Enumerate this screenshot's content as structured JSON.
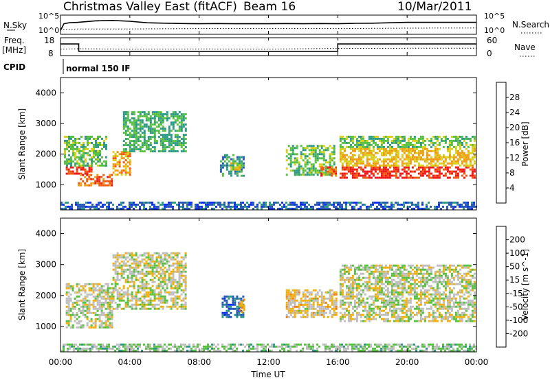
{
  "header": {
    "title": "Christmas Valley East (fitACF)",
    "beam": "Beam 16",
    "date": "10/Mar/2011"
  },
  "colors": {
    "axis": "#000000",
    "scatter_gray": "#bebebe"
  },
  "chart_data": [
    {
      "type": "line",
      "panel": "noise",
      "ylabel_left": "N.Sky",
      "ylabel_right": "N.Search",
      "ticks_left": [
        "10^5",
        "10^0"
      ],
      "ticks_right": [
        "10^5",
        "10^0"
      ],
      "series": [
        {
          "style": "solid",
          "x": [
            0,
            0.2,
            0.5,
            1,
            2,
            3,
            4,
            5,
            6,
            7,
            8,
            9,
            10,
            11,
            12,
            13,
            14,
            15,
            16,
            17,
            18,
            19,
            20,
            21,
            22,
            23,
            24
          ],
          "y": [
            0.2,
            0.55,
            0.6,
            0.62,
            0.7,
            0.72,
            0.68,
            0.6,
            0.58,
            0.56,
            0.55,
            0.56,
            0.55,
            0.55,
            0.55,
            0.56,
            0.55,
            0.56,
            0.55,
            0.57,
            0.58,
            0.6,
            0.62,
            0.62,
            0.62,
            0.62,
            0.62
          ]
        },
        {
          "style": "dotted",
          "x": [
            0,
            1,
            4,
            8,
            12,
            16,
            20,
            24
          ],
          "y": [
            0.25,
            0.28,
            0.28,
            0.3,
            0.3,
            0.3,
            0.32,
            0.33
          ]
        }
      ]
    },
    {
      "type": "line",
      "panel": "frequency",
      "ylabel_left": "Freq.",
      "ylabel_left_unit": "[MHz]",
      "ylabel_right": "Nave",
      "ticks_left": [
        "18",
        "8"
      ],
      "ticks_right": [
        "60",
        "0"
      ],
      "series": [
        {
          "style": "solid",
          "x": [
            0,
            1.05,
            1.05,
            16,
            16,
            24
          ],
          "y": [
            14.5,
            14.5,
            10.4,
            10.4,
            14.5,
            14.5
          ]
        },
        {
          "style": "dotted",
          "x": [
            0,
            1,
            4,
            8,
            12,
            16,
            20,
            24
          ],
          "y": [
            11.6,
            11.8,
            11.6,
            11.7,
            11.6,
            12.0,
            12.1,
            12.1
          ]
        }
      ]
    },
    {
      "type": "table",
      "panel": "cpid",
      "label": "CPID",
      "value": "normal 150 IF"
    },
    {
      "type": "heatmap",
      "panel": "power",
      "ylabel": "Slant Range [km]",
      "ylim": [
        180,
        4500
      ],
      "yticks": [
        1000,
        2000,
        3000,
        4000
      ],
      "colorbar": {
        "label": "Power [dB]",
        "ticks": [
          "4",
          "8",
          "12",
          "16",
          "20",
          "24",
          "28"
        ],
        "colors": [
          "#1030f0",
          "#2858b8",
          "#2e9a84",
          "#58c040",
          "#d8d018",
          "#f09c10",
          "#f05810",
          "#f01818"
        ],
        "range": [
          0,
          32
        ]
      },
      "regions": [
        {
          "x": [
            0.3,
            1.8
          ],
          "y": [
            1350,
            1600
          ],
          "v": 28
        },
        {
          "x": [
            1.0,
            3.0
          ],
          "y": [
            1000,
            1350
          ],
          "v": 26
        },
        {
          "x": [
            3.0,
            4.0
          ],
          "y": [
            1300,
            2100
          ],
          "v": 22
        },
        {
          "x": [
            0.2,
            2.6
          ],
          "y": [
            1600,
            2600
          ],
          "v": 14
        },
        {
          "x": [
            3.6,
            7.2
          ],
          "y": [
            2100,
            3400
          ],
          "v": 12
        },
        {
          "x": [
            9.2,
            10.6
          ],
          "y": [
            1300,
            2000
          ],
          "v": 10
        },
        {
          "x": [
            9.8,
            10.3
          ],
          "y": [
            1500,
            1800
          ],
          "v": 18
        },
        {
          "x": [
            13.0,
            15.8
          ],
          "y": [
            1300,
            2300
          ],
          "v": 14
        },
        {
          "x": [
            15.0,
            15.9
          ],
          "y": [
            1300,
            1600
          ],
          "v": 26
        },
        {
          "x": [
            16.1,
            23.9
          ],
          "y": [
            1200,
            1600
          ],
          "v": 29
        },
        {
          "x": [
            16.1,
            23.9
          ],
          "y": [
            1600,
            2200
          ],
          "v": 20
        },
        {
          "x": [
            16.1,
            23.9
          ],
          "y": [
            2200,
            2600
          ],
          "v": 14
        },
        {
          "x": [
            0,
            24
          ],
          "y": [
            200,
            450
          ],
          "v": 6
        }
      ]
    },
    {
      "type": "heatmap",
      "panel": "velocity",
      "ylabel": "Slant Range [km]",
      "ylim": [
        180,
        4500
      ],
      "yticks": [
        1000,
        2000,
        3000,
        4000
      ],
      "xlabel": "Time UT",
      "xticks": [
        "00:00",
        "04:00",
        "08:00",
        "12:00",
        "16:00",
        "20:00",
        "00:00"
      ],
      "colorbar": {
        "label": "Velocity [m s^-1]",
        "ticks": [
          "200",
          "100",
          "50",
          "15",
          "-15",
          "-50",
          "-100",
          "-200"
        ],
        "colors": [
          "#1030f0",
          "#2858b8",
          "#2e9a84",
          "#58c040",
          "#bebebe",
          "#f0b010",
          "#f08010",
          "#f05010",
          "#f01818"
        ],
        "range": [
          -250,
          250
        ]
      },
      "regions": [
        {
          "x": [
            0.3,
            3.0
          ],
          "y": [
            1000,
            2400
          ],
          "v": 0
        },
        {
          "x": [
            3.0,
            7.2
          ],
          "y": [
            1600,
            3400
          ],
          "v": 0
        },
        {
          "x": [
            9.3,
            10.5
          ],
          "y": [
            1300,
            2000
          ],
          "v": -150
        },
        {
          "x": [
            10.3,
            10.6
          ],
          "y": [
            1500,
            1900
          ],
          "v": 60
        },
        {
          "x": [
            13.0,
            15.9
          ],
          "y": [
            1300,
            2200
          ],
          "v": 30
        },
        {
          "x": [
            16.1,
            23.9
          ],
          "y": [
            1200,
            3000
          ],
          "v": 0
        },
        {
          "x": [
            0,
            24
          ],
          "y": [
            200,
            450
          ],
          "v": -40
        }
      ]
    }
  ]
}
